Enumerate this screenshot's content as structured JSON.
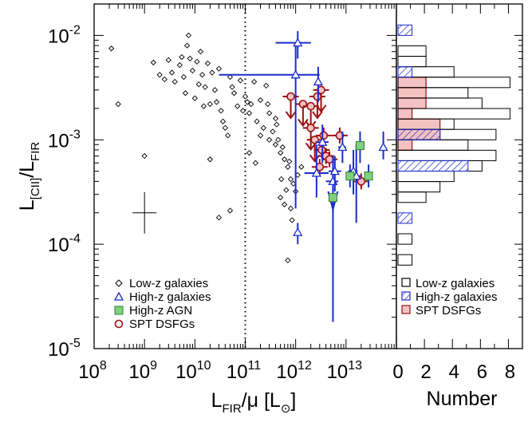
{
  "colors": {
    "low": "#000000",
    "highz": "#1a2ccc",
    "agn": "#7fd17f",
    "spt": "#9b1010",
    "spt_fill": "#f4c2c2"
  },
  "chart_data": [
    {
      "type": "scatter",
      "title": "",
      "xlabel": {
        "main": "L",
        "sub": "FIR",
        "rest": "/μ [L",
        "sub2": "⊙",
        "close": "]"
      },
      "ylabel": {
        "main": "L",
        "sub": "[CII]",
        "mid": "/L",
        "sub2": "FIR"
      },
      "xscale": "log",
      "yscale": "log",
      "xlim": [
        100000000.0,
        100000000000000.0
      ],
      "ylim": [
        1e-05,
        0.02
      ],
      "xticklabels": [
        {
          "base": "10",
          "exp": "8",
          "v": 8
        },
        {
          "base": "10",
          "exp": "9",
          "v": 9
        },
        {
          "base": "10",
          "exp": "10",
          "v": 10
        },
        {
          "base": "10",
          "exp": "11",
          "v": 11
        },
        {
          "base": "10",
          "exp": "12",
          "v": 12
        },
        {
          "base": "10",
          "exp": "13",
          "v": 13
        }
      ],
      "yticklabels": [
        {
          "base": "10",
          "exp": "-2",
          "v": -2
        },
        {
          "base": "10",
          "exp": "-3",
          "v": -3
        },
        {
          "base": "10",
          "exp": "-4",
          "v": -4
        },
        {
          "base": "10",
          "exp": "-5",
          "v": -5
        }
      ],
      "vline_x": 100000000000.0,
      "legend": {
        "placement": "lower-left",
        "entries": [
          "Low-z galaxies",
          "High-z galaxies",
          "High-z AGN",
          "SPT DSFGs"
        ]
      },
      "typical_error": {
        "x": 1000000000.0,
        "y": 0.0002
      },
      "series": [
        {
          "name": "Low-z galaxies",
          "marker": "diamond",
          "points": [
            [
              220000000.0,
              0.0075
            ],
            [
              300000000.0,
              0.0022
            ],
            [
              1000000000.0,
              0.0007
            ],
            [
              1500000000.0,
              0.0055
            ],
            [
              2000000000.0,
              0.0042
            ],
            [
              2500000000.0,
              0.0038
            ],
            [
              3000000000.0,
              0.0058
            ],
            [
              3500000000.0,
              0.0044
            ],
            [
              4000000000.0,
              0.0036
            ],
            [
              5000000000.0,
              0.0052
            ],
            [
              5500000000.0,
              0.0062
            ],
            [
              6000000000.0,
              0.004
            ],
            [
              6500000000.0,
              0.0028
            ],
            [
              7000000000.0,
              0.008
            ],
            [
              7500000000.0,
              0.01
            ],
            [
              8000000000.0,
              0.006
            ],
            [
              9000000000.0,
              0.0046
            ],
            [
              10000000000.0,
              0.0025
            ],
            [
              11000000000.0,
              0.0056
            ],
            [
              12000000000.0,
              0.0034
            ],
            [
              13000000000.0,
              0.007
            ],
            [
              14000000000.0,
              0.0042
            ],
            [
              15000000000.0,
              0.0021
            ],
            [
              16000000000.0,
              0.0032
            ],
            [
              18000000000.0,
              0.0054
            ],
            [
              20000000000.0,
              0.0022
            ],
            [
              22000000000.0,
              0.0044
            ],
            [
              25000000000.0,
              0.003
            ],
            [
              27000000000.0,
              0.0023
            ],
            [
              30000000000.0,
              0.0048
            ],
            [
              33000000000.0,
              0.0019
            ],
            [
              36000000000.0,
              0.0015
            ],
            [
              40000000000.0,
              0.0013
            ],
            [
              45000000000.0,
              0.0011
            ],
            [
              50000000000.0,
              0.004
            ],
            [
              55000000000.0,
              0.0032
            ],
            [
              60000000000.0,
              0.0028
            ],
            [
              70000000000.0,
              0.0021
            ],
            [
              80000000000.0,
              0.0037
            ],
            [
              90000000000.0,
              0.0019
            ],
            [
              100000000000.0,
              0.0026
            ],
            [
              110000000000.0,
              0.0023
            ],
            [
              120000000000.0,
              0.0018
            ],
            [
              130000000000.0,
              0.0022
            ],
            [
              150000000000.0,
              0.0036
            ],
            [
              170000000000.0,
              0.0015
            ],
            [
              200000000000.0,
              0.0024
            ],
            [
              230000000000.0,
              0.0013
            ],
            [
              260000000000.0,
              0.0033
            ],
            [
              300000000000.0,
              0.0018
            ],
            [
              350000000000.0,
              0.0012
            ],
            [
              400000000000.0,
              0.0016
            ],
            [
              450000000000.0,
              0.001
            ],
            [
              500000000000.0,
              0.00075
            ],
            [
              550000000000.0,
              0.00085
            ],
            [
              600000000000.0,
              0.00065
            ],
            [
              700000000000.0,
              0.00055
            ],
            [
              800000000000.0,
              0.00042
            ],
            [
              900000000000.0,
              0.00038
            ],
            [
              1000000000000.0,
              0.00032
            ],
            [
              1100000000000.0,
              0.00046
            ],
            [
              1300000000000.0,
              0.00055
            ],
            [
              700000000000.0,
              7e-05
            ],
            [
              500000000000.0,
              0.00028
            ],
            [
              600000000000.0,
              0.00024
            ],
            [
              800000000000.0,
              0.00022
            ],
            [
              650000000000.0,
              0.00033
            ],
            [
              750000000000.0,
              0.00062
            ],
            [
              30000000000.0,
              0.00018
            ],
            [
              50000000000.0,
              0.00021
            ],
            [
              20000000000.0,
              0.00065
            ],
            [
              400000000000.0,
              0.0009
            ],
            [
              300000000000.0,
              0.001
            ],
            [
              200000000000.0,
              0.0011
            ],
            [
              120000000000.0,
              0.00075
            ],
            [
              160000000000.0,
              0.0006
            ],
            [
              280000000000.0,
              0.0022
            ],
            [
              420000000000.0,
              0.0014
            ],
            [
              520000000000.0,
              0.00042
            ],
            [
              850000000000.0,
              0.00017
            ]
          ]
        },
        {
          "name": "High-z galaxies",
          "marker": "triangle",
          "points": [
            [
              1100000000000.0,
              0.0085,
              400000000000.0,
              2000000000000.0,
              0.006,
              0.011
            ],
            [
              1000000000000.0,
              0.0042,
              30000000000.0,
              3000000000000.0,
              0.00022,
              0.008
            ],
            [
              1100000000000.0,
              0.00013,
              1100000000000.0,
              1100000000000.0,
              0.0001,
              0.00016
            ],
            [
              2800000000000.0,
              0.0036,
              2800000000000.0,
              2800000000000.0,
              0.0023,
              0.005
            ],
            [
              2600000000000.0,
              0.00048,
              1500000000000.0,
              4500000000000.0,
              0.00028,
              0.0009
            ],
            [
              3400000000000.0,
              0.00095,
              2500000000000.0,
              4500000000000.0,
              0.0006,
              0.0014
            ],
            [
              5500000000000.0,
              0.0004,
              4000000000000.0,
              7000000000000.0,
              0.0002,
              0.0007
            ],
            [
              6000000000000.0,
              0.0005,
              4500000000000.0,
              8000000000000.0,
              0.00032,
              0.0007
            ],
            [
              8500000000000.0,
              0.00085,
              7000000000000.0,
              10000000000000.0,
              0.0006,
              0.0012
            ],
            [
              14000000000000.0,
              0.0005,
              11000000000000.0,
              17000000000000.0,
              0.0003,
              0.0008
            ],
            [
              16000000000000.0,
              0.00045,
              12000000000000.0,
              20000000000000.0,
              0.00016,
              0.0009
            ],
            [
              55000000000000.0,
              0.00085,
              55000000000000.0,
              55000000000000.0,
              0.00065,
              0.0012
            ]
          ]
        },
        {
          "name": "High-z AGN",
          "marker": "square",
          "points": [
            [
              5500000000000.0,
              0.00028,
              4500000000000.0,
              6500000000000.0,
              0.00022,
              0.00035
            ],
            [
              12000000000000.0,
              0.00045,
              10000000000000.0,
              14000000000000.0,
              0.00035,
              0.00058
            ],
            [
              19000000000000.0,
              0.00088,
              16000000000000.0,
              22000000000000.0,
              0.0006,
              0.0012
            ],
            [
              28000000000000.0,
              0.00045,
              24000000000000.0,
              32000000000000.0,
              0.00035,
              0.00058
            ]
          ]
        },
        {
          "name": "SPT DSFGs",
          "marker": "circle",
          "points": [
            [
              800000000000.0,
              0.0026,
              "upper"
            ],
            [
              1400000000000.0,
              0.0022,
              "upper"
            ],
            [
              2000000000000.0,
              0.0021,
              "upper"
            ],
            [
              2700000000000.0,
              0.0026,
              "upper"
            ],
            [
              3200000000000.0,
              0.003,
              "upper"
            ],
            [
              2000000000000.0,
              0.0013,
              "upper"
            ],
            [
              2400000000000.0,
              0.001,
              "upper"
            ],
            [
              3600000000000.0,
              0.0011,
              ""
            ],
            [
              3300000000000.0,
              0.0008,
              ""
            ],
            [
              4000000000000.0,
              0.0007,
              ""
            ],
            [
              4700000000000.0,
              0.00065,
              ""
            ],
            [
              7500000000000.0,
              0.0011,
              ""
            ],
            [
              3000000000000.0,
              0.00055,
              ""
            ],
            [
              20000000000000.0,
              0.0004,
              ""
            ]
          ]
        }
      ]
    },
    {
      "type": "bar",
      "orientation": "horizontal",
      "title": "",
      "xlabel": "Number",
      "xlim": [
        0,
        9
      ],
      "xticklabels": [
        "0",
        "2",
        "4",
        "6",
        "8"
      ],
      "legend": {
        "placement": "lower-right",
        "entries": [
          "Low-z galaxies",
          "High-z galaxies",
          "SPT DSFGs"
        ]
      },
      "bin_width_dex": 0.1,
      "series": [
        {
          "name": "Low-z galaxies",
          "bins": [
            [
              -4.2,
              1
            ],
            [
              -4.0,
              1
            ],
            [
              -3.6,
              2
            ],
            [
              -3.5,
              3
            ],
            [
              -3.4,
              4
            ],
            [
              -3.3,
              6
            ],
            [
              -3.2,
              7
            ],
            [
              -3.1,
              5
            ],
            [
              -3.0,
              7
            ],
            [
              -2.9,
              4
            ],
            [
              -2.8,
              8
            ],
            [
              -2.7,
              6
            ],
            [
              -2.6,
              5
            ],
            [
              -2.5,
              8
            ],
            [
              -2.4,
              4
            ],
            [
              -2.3,
              2
            ],
            [
              -2.2,
              2
            ]
          ]
        },
        {
          "name": "High-z galaxies",
          "bins": [
            [
              -3.8,
              1
            ],
            [
              -3.3,
              5
            ],
            [
              -3.0,
              3
            ],
            [
              -2.4,
              1
            ],
            [
              -2.0,
              1
            ]
          ]
        },
        {
          "name": "SPT DSFGs",
          "bins": [
            [
              -3.1,
              1
            ],
            [
              -3.0,
              3
            ],
            [
              -2.9,
              3
            ],
            [
              -2.8,
              1
            ],
            [
              -2.7,
              2
            ],
            [
              -2.6,
              2
            ],
            [
              -2.5,
              2
            ]
          ]
        }
      ]
    }
  ]
}
